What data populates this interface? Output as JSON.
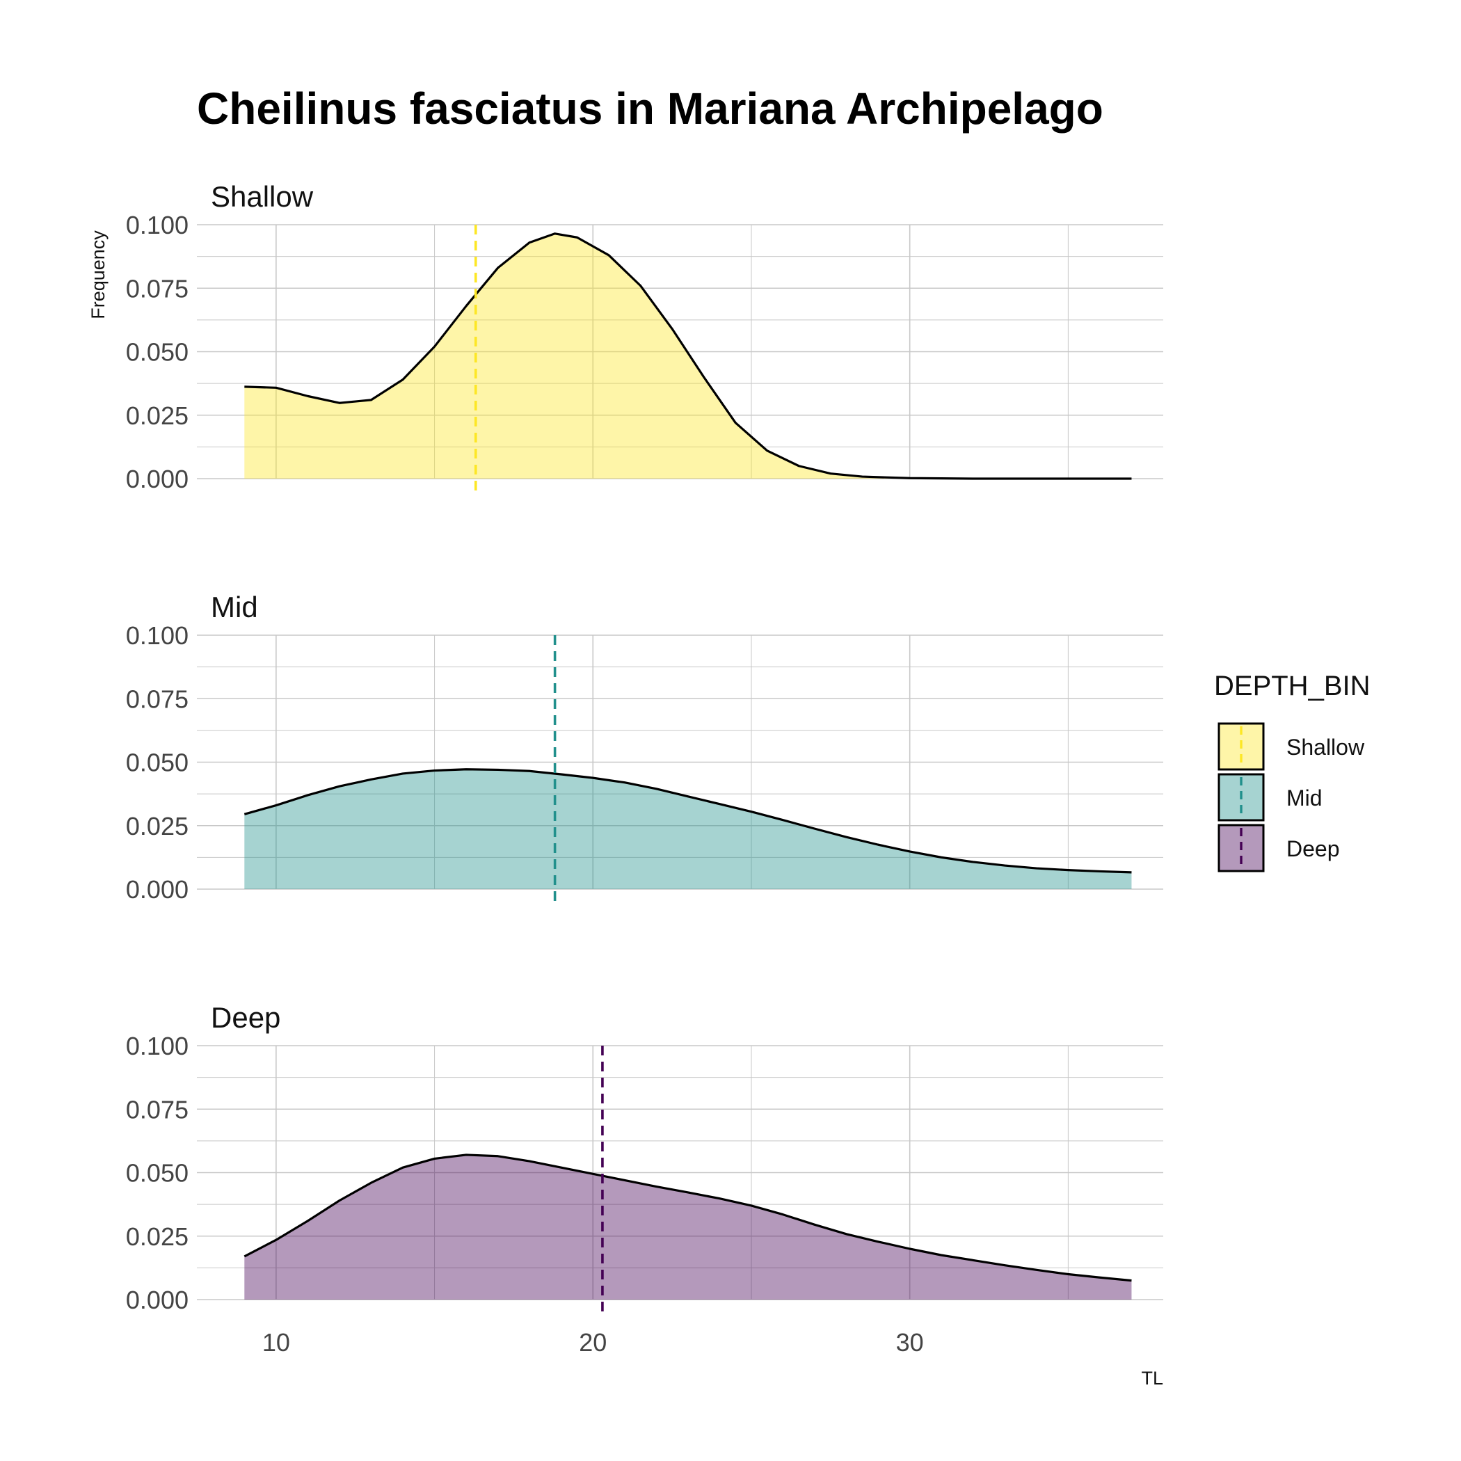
{
  "chart_data": {
    "type": "area",
    "title": "Cheilinus fasciatus in Mariana Archipelago",
    "xlabel": "TL",
    "ylabel": "Frequency",
    "xlim": [
      7.5,
      38
    ],
    "ylim": [
      0,
      0.1
    ],
    "x_ticks": [
      10,
      20,
      30
    ],
    "x_tick_labels": [
      "10",
      "20",
      "30"
    ],
    "y_ticks": [
      0,
      0.025,
      0.05,
      0.075,
      0.1
    ],
    "y_tick_labels": [
      "0.000",
      "0.025",
      "0.050",
      "0.075",
      "0.100"
    ],
    "grid": true,
    "legend": {
      "title": "DEPTH_BIN",
      "position": "right"
    },
    "series": [
      {
        "name": "Shallow",
        "color": "#FDE725",
        "mean": 16.3,
        "points": [
          [
            9,
            0.0362
          ],
          [
            10,
            0.0358
          ],
          [
            11,
            0.0325
          ],
          [
            12,
            0.0298
          ],
          [
            13,
            0.031
          ],
          [
            14,
            0.039
          ],
          [
            15,
            0.052
          ],
          [
            16,
            0.068
          ],
          [
            17,
            0.083
          ],
          [
            18,
            0.093
          ],
          [
            18.8,
            0.0965
          ],
          [
            19.5,
            0.095
          ],
          [
            20.5,
            0.088
          ],
          [
            21.5,
            0.076
          ],
          [
            22.5,
            0.059
          ],
          [
            23.5,
            0.04
          ],
          [
            24.5,
            0.022
          ],
          [
            25.5,
            0.011
          ],
          [
            26.5,
            0.005
          ],
          [
            27.5,
            0.002
          ],
          [
            28.5,
            0.0008
          ],
          [
            30,
            0.0002
          ],
          [
            32,
            0.0
          ],
          [
            35,
            0.0
          ],
          [
            37,
            0.0
          ]
        ]
      },
      {
        "name": "Mid",
        "color": "#21908C",
        "mean": 18.8,
        "points": [
          [
            9,
            0.0295
          ],
          [
            10,
            0.033
          ],
          [
            11,
            0.037
          ],
          [
            12,
            0.0405
          ],
          [
            13,
            0.0432
          ],
          [
            14,
            0.0455
          ],
          [
            15,
            0.0467
          ],
          [
            16,
            0.0472
          ],
          [
            17,
            0.047
          ],
          [
            18,
            0.0465
          ],
          [
            19,
            0.0452
          ],
          [
            20,
            0.0438
          ],
          [
            21,
            0.042
          ],
          [
            22,
            0.0395
          ],
          [
            23,
            0.0365
          ],
          [
            24,
            0.0335
          ],
          [
            25,
            0.0305
          ],
          [
            26,
            0.0272
          ],
          [
            27,
            0.0238
          ],
          [
            28,
            0.0205
          ],
          [
            29,
            0.0175
          ],
          [
            30,
            0.0148
          ],
          [
            31,
            0.0125
          ],
          [
            32,
            0.0107
          ],
          [
            33,
            0.0093
          ],
          [
            34,
            0.0082
          ],
          [
            35,
            0.0075
          ],
          [
            36,
            0.007
          ],
          [
            37,
            0.0066
          ]
        ]
      },
      {
        "name": "Deep",
        "color": "#440154",
        "mean": 20.3,
        "points": [
          [
            9,
            0.017
          ],
          [
            10,
            0.0235
          ],
          [
            11,
            0.031
          ],
          [
            12,
            0.039
          ],
          [
            13,
            0.046
          ],
          [
            14,
            0.052
          ],
          [
            15,
            0.0555
          ],
          [
            16,
            0.057
          ],
          [
            17,
            0.0565
          ],
          [
            18,
            0.0545
          ],
          [
            19,
            0.052
          ],
          [
            20,
            0.0495
          ],
          [
            21,
            0.047
          ],
          [
            22,
            0.0445
          ],
          [
            23,
            0.0422
          ],
          [
            24,
            0.0398
          ],
          [
            25,
            0.037
          ],
          [
            26,
            0.0335
          ],
          [
            27,
            0.0295
          ],
          [
            28,
            0.0258
          ],
          [
            29,
            0.0228
          ],
          [
            30,
            0.02
          ],
          [
            31,
            0.0175
          ],
          [
            32,
            0.0155
          ],
          [
            33,
            0.0135
          ],
          [
            34,
            0.0117
          ],
          [
            35,
            0.01
          ],
          [
            36,
            0.0087
          ],
          [
            37,
            0.0075
          ]
        ]
      }
    ]
  }
}
